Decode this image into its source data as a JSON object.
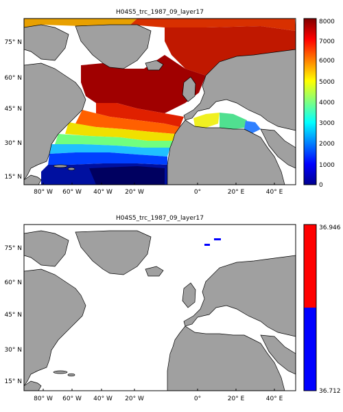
{
  "maps": [
    {
      "title": "H04S5_trc_1987_09_layer17",
      "x_ticks": [
        "80° W",
        "60° W",
        "40° W",
        "20° W",
        "0°",
        "20° E",
        "40° E"
      ],
      "y_ticks": [
        "75° N",
        "60° N",
        "45° N",
        "30° N",
        "15° N"
      ],
      "colorbar": {
        "type": "continuous",
        "colormap": "jet",
        "ticks": [
          "8000",
          "7000",
          "6000",
          "5000",
          "4000",
          "3000",
          "2000",
          "1000",
          "0"
        ],
        "min": 0,
        "max": 8000
      },
      "land_color": "#a0a0a0",
      "nodata_color": "#ffffff"
    },
    {
      "title": "H04S5_trc_1987_09_layer17",
      "x_ticks": [
        "80° W",
        "60° W",
        "40° W",
        "20° W",
        "0°",
        "20° E",
        "40° E"
      ],
      "y_ticks": [
        "75° N",
        "60° N",
        "45° N",
        "30° N",
        "15° N"
      ],
      "colorbar": {
        "type": "two-class",
        "colors": [
          "#ff0000",
          "#0000ff"
        ],
        "ticks": [
          "36.946",
          "36.712"
        ],
        "min": 36.712,
        "max": 36.946
      },
      "land_color": "#a0a0a0",
      "nodata_color": "#ffffff"
    }
  ]
}
